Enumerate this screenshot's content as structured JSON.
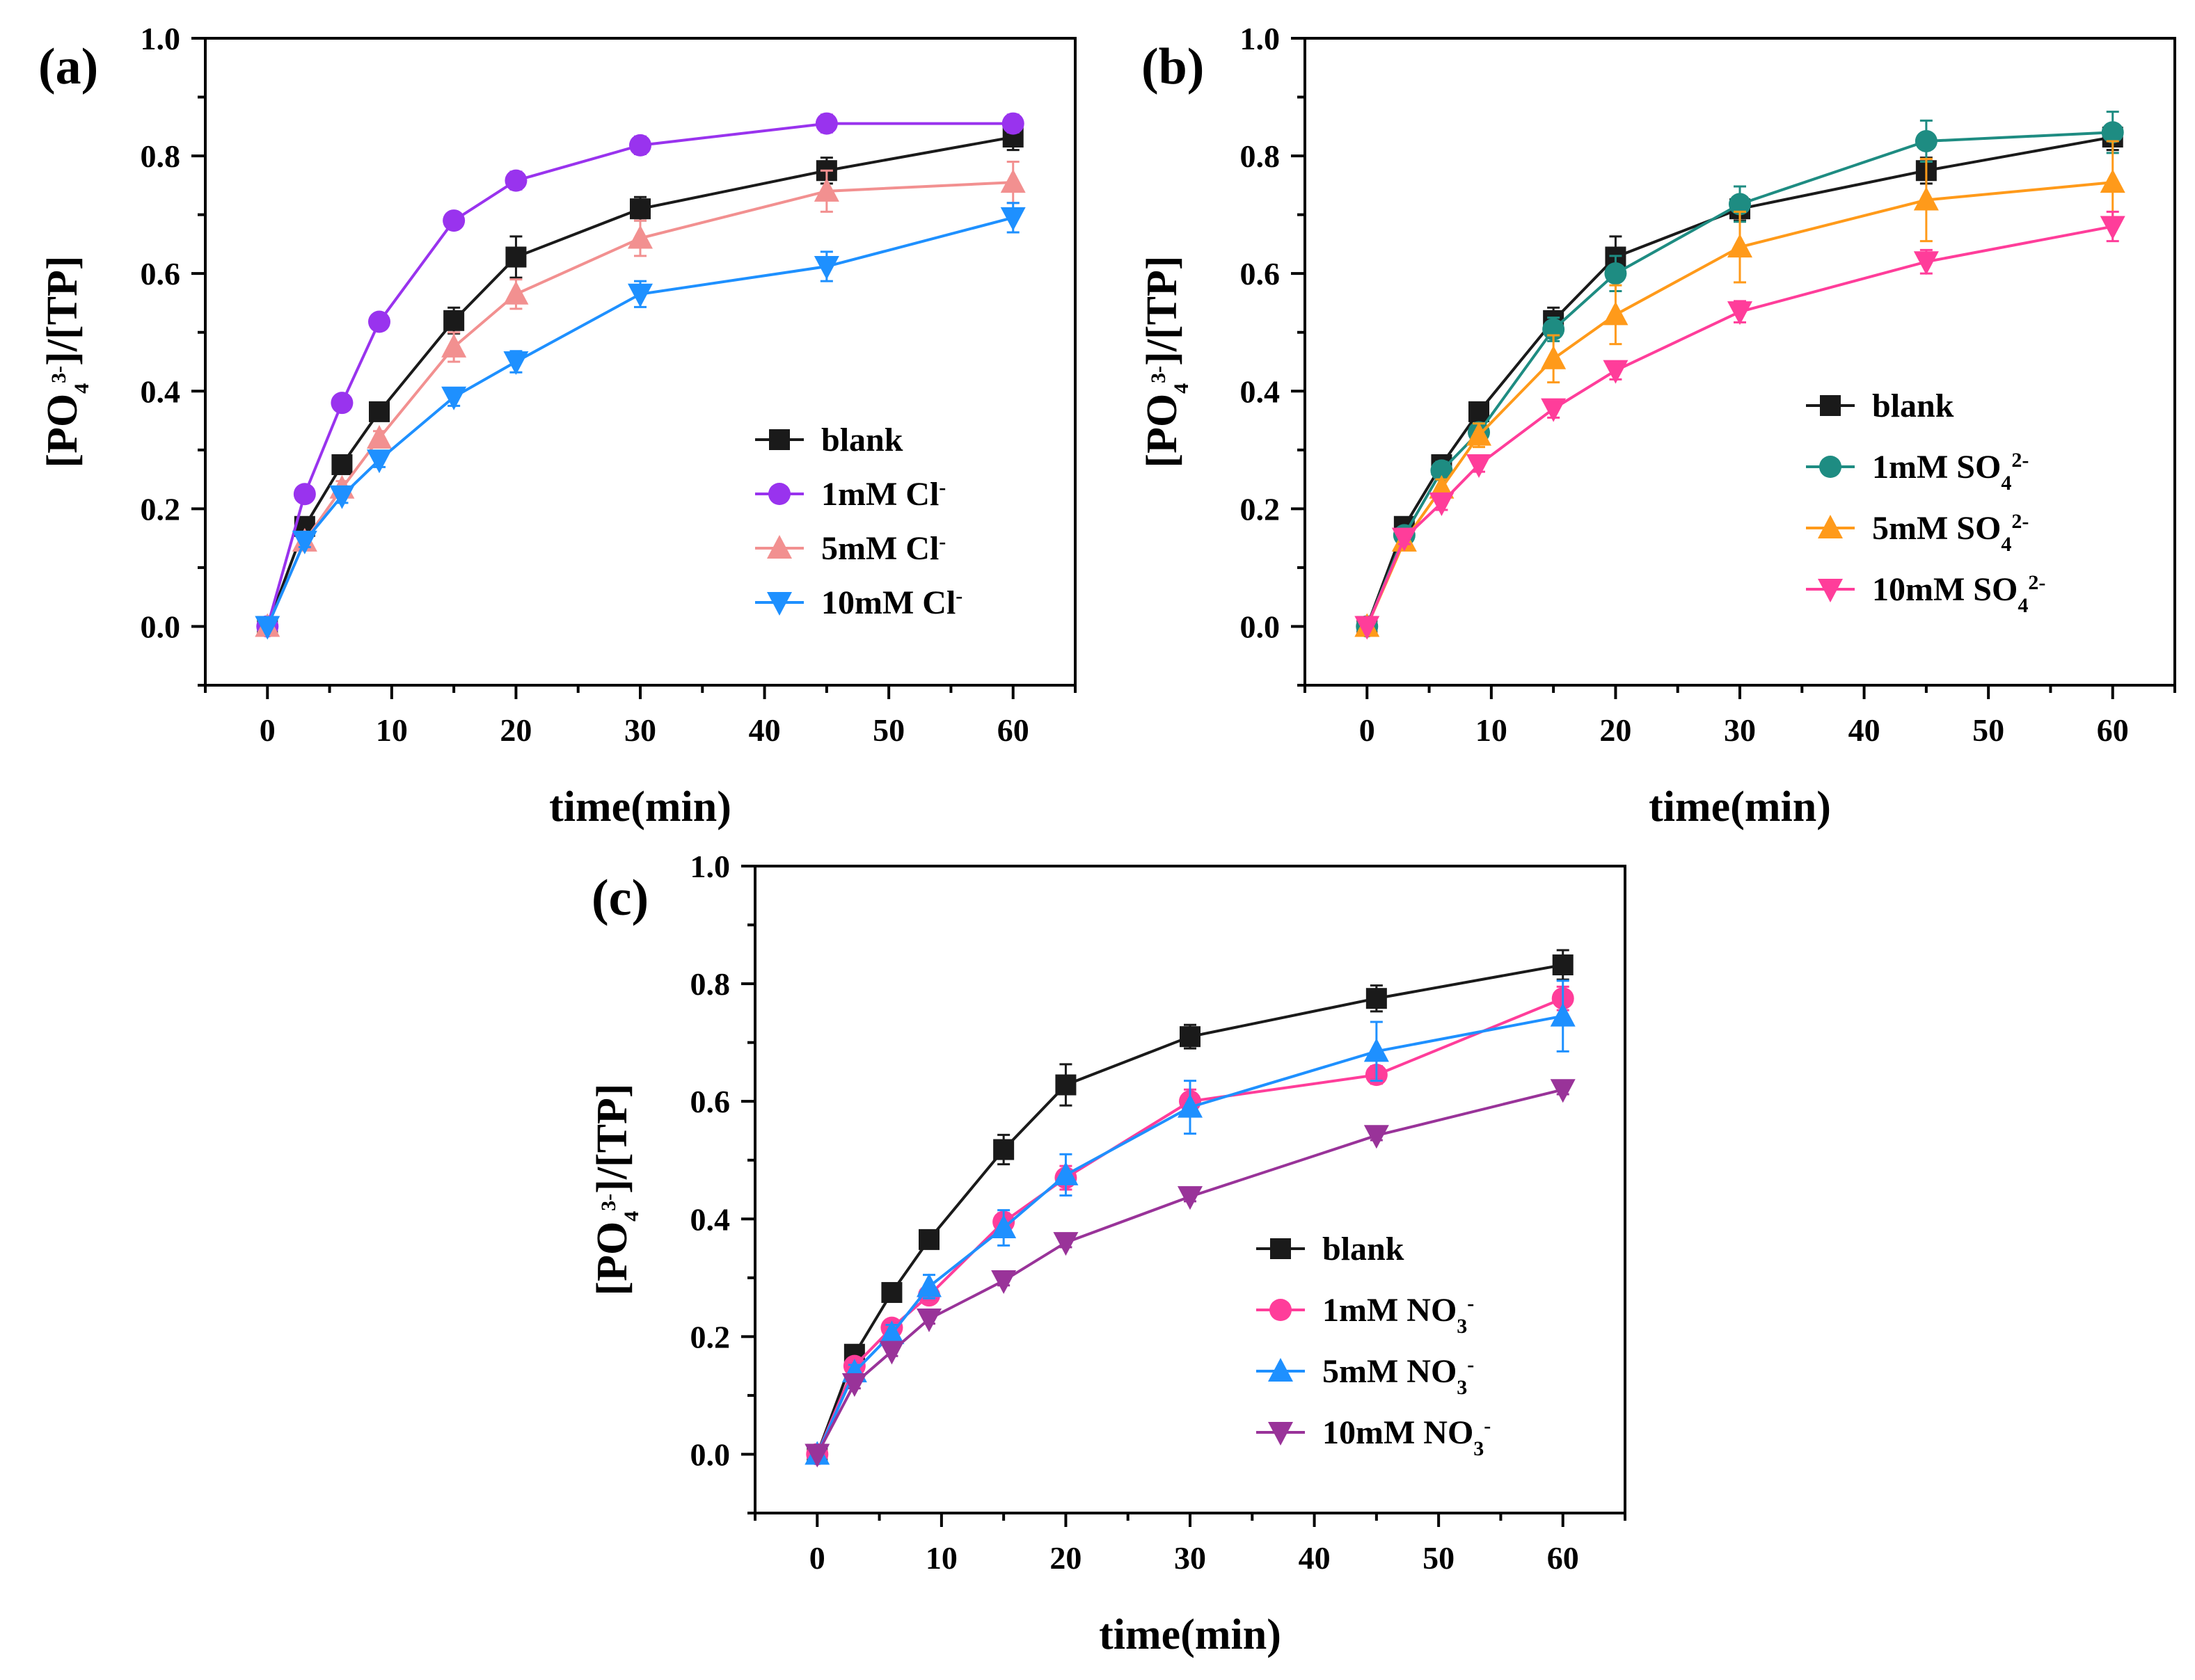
{
  "chart_data": [
    {
      "type": "line",
      "panel_tag": "(a)",
      "xlabel": "time(min)",
      "ylabel": {
        "main": "[PO",
        "sub": "4",
        "sup": "3-",
        "rest": "]/[TP]"
      },
      "xlim": [
        -5,
        65
      ],
      "ylim": [
        -0.1,
        1.0
      ],
      "xticks": [
        0,
        10,
        20,
        30,
        40,
        50,
        60
      ],
      "yticks": [
        0.0,
        0.2,
        0.4,
        0.6,
        0.8,
        1.0
      ],
      "ytick_labels": [
        "0.0",
        "0.2",
        "0.4",
        "0.6",
        "0.8",
        "1.0"
      ],
      "x": [
        0,
        3,
        6,
        9,
        15,
        20,
        30,
        45,
        60
      ],
      "legend_position": "bottom-right",
      "series": [
        {
          "name": "blank",
          "label": {
            "main": "blank",
            "sub": "",
            "sup": ""
          },
          "color": "#1a1a1a",
          "marker": "square",
          "values": [
            0.0,
            0.17,
            0.275,
            0.365,
            0.52,
            0.628,
            0.71,
            0.775,
            0.832
          ],
          "errors": [
            0.0,
            0.01,
            0.012,
            0.012,
            0.022,
            0.035,
            0.02,
            0.022,
            0.022
          ]
        },
        {
          "name": "1mM Cl-",
          "label": {
            "main": "1mM Cl",
            "sub": "",
            "sup": "-"
          },
          "color": "#9933ee",
          "marker": "circle",
          "values": [
            0.0,
            0.225,
            0.38,
            0.518,
            0.69,
            0.758,
            0.818,
            0.855,
            0.855
          ],
          "errors": [
            0.0,
            0.008,
            0.01,
            0.01,
            0.012,
            0.015,
            0.015,
            0.015,
            0.015
          ]
        },
        {
          "name": "5mM Cl-",
          "label": {
            "main": "5mM Cl",
            "sub": "",
            "sup": "-"
          },
          "color": "#f29090",
          "marker": "triangle-up",
          "values": [
            0.0,
            0.145,
            0.235,
            0.32,
            0.475,
            0.565,
            0.66,
            0.74,
            0.755
          ],
          "errors": [
            0.0,
            0.01,
            0.012,
            0.012,
            0.025,
            0.025,
            0.03,
            0.035,
            0.035
          ]
        },
        {
          "name": "10mM Cl-",
          "label": {
            "main": "10mM Cl",
            "sub": "",
            "sup": "-"
          },
          "color": "#1e90ff",
          "marker": "triangle-down",
          "values": [
            0.0,
            0.145,
            0.222,
            0.283,
            0.39,
            0.45,
            0.565,
            0.612,
            0.695
          ],
          "errors": [
            0.0,
            0.01,
            0.012,
            0.012,
            0.015,
            0.018,
            0.022,
            0.025,
            0.025
          ]
        }
      ]
    },
    {
      "type": "line",
      "panel_tag": "(b)",
      "xlabel": "time(min)",
      "ylabel": {
        "main": "[PO",
        "sub": "4",
        "sup": "3-",
        "rest": "]/[TP]"
      },
      "xlim": [
        -5,
        65
      ],
      "ylim": [
        -0.1,
        1.0
      ],
      "xticks": [
        0,
        10,
        20,
        30,
        40,
        50,
        60
      ],
      "yticks": [
        0.0,
        0.2,
        0.4,
        0.6,
        0.8,
        1.0
      ],
      "ytick_labels": [
        "0.0",
        "0.2",
        "0.4",
        "0.6",
        "0.8",
        "1.0"
      ],
      "x": [
        0,
        3,
        6,
        9,
        15,
        20,
        30,
        45,
        60
      ],
      "legend_position": "right",
      "series": [
        {
          "name": "blank",
          "label": {
            "main": "blank",
            "sub": "",
            "sup": ""
          },
          "color": "#1a1a1a",
          "marker": "square",
          "values": [
            0.0,
            0.17,
            0.275,
            0.365,
            0.52,
            0.628,
            0.71,
            0.775,
            0.832
          ],
          "errors": [
            0.0,
            0.01,
            0.012,
            0.012,
            0.022,
            0.035,
            0.02,
            0.022,
            0.022
          ]
        },
        {
          "name": "1mM SO4 2-",
          "label": {
            "main": "1mM SO",
            "sub": "4",
            "sup": "2-"
          },
          "color": "#1e8c82",
          "marker": "circle",
          "values": [
            0.0,
            0.155,
            0.265,
            0.33,
            0.505,
            0.6,
            0.718,
            0.825,
            0.84
          ],
          "errors": [
            0.0,
            0.01,
            0.015,
            0.015,
            0.02,
            0.03,
            0.03,
            0.035,
            0.035
          ]
        },
        {
          "name": "5mM SO4 2-",
          "label": {
            "main": "5mM SO",
            "sub": "4",
            "sup": "2-"
          },
          "color": "#ff9a1a",
          "marker": "triangle-up",
          "values": [
            0.0,
            0.145,
            0.235,
            0.325,
            0.455,
            0.53,
            0.645,
            0.725,
            0.755
          ],
          "errors": [
            0.0,
            0.01,
            0.015,
            0.02,
            0.04,
            0.05,
            0.06,
            0.07,
            0.07
          ]
        },
        {
          "name": "10mM SO4 2-",
          "label": {
            "main": "10mM SO",
            "sub": "4",
            "sup": "2-"
          },
          "color": "#ff3d9a",
          "marker": "triangle-down",
          "values": [
            0.0,
            0.15,
            0.21,
            0.275,
            0.37,
            0.435,
            0.535,
            0.62,
            0.68
          ],
          "errors": [
            0.0,
            0.01,
            0.012,
            0.012,
            0.015,
            0.015,
            0.018,
            0.02,
            0.025
          ]
        }
      ]
    },
    {
      "type": "line",
      "panel_tag": "(c)",
      "xlabel": "time(min)",
      "ylabel": {
        "main": "[PO",
        "sub": "4",
        "sup": "3-",
        "rest": "]/[TP]"
      },
      "xlim": [
        -5,
        65
      ],
      "ylim": [
        -0.1,
        1.0
      ],
      "xticks": [
        0,
        10,
        20,
        30,
        40,
        50,
        60
      ],
      "yticks": [
        0.0,
        0.2,
        0.4,
        0.6,
        0.8,
        1.0
      ],
      "ytick_labels": [
        "0.0",
        "0.2",
        "0.4",
        "0.6",
        "0.8",
        "1.0"
      ],
      "x": [
        0,
        3,
        6,
        9,
        15,
        20,
        30,
        45,
        60
      ],
      "legend_position": "bottom-right",
      "series": [
        {
          "name": "blank",
          "label": {
            "main": "blank",
            "sub": "",
            "sup": ""
          },
          "color": "#1a1a1a",
          "marker": "square",
          "values": [
            0.0,
            0.17,
            0.275,
            0.365,
            0.518,
            0.628,
            0.71,
            0.775,
            0.832
          ],
          "errors": [
            0.0,
            0.01,
            0.012,
            0.012,
            0.025,
            0.035,
            0.02,
            0.022,
            0.025
          ]
        },
        {
          "name": "1mM NO3-",
          "label": {
            "main": "1mM NO",
            "sub": "3",
            "sup": "-"
          },
          "color": "#ff3d9a",
          "marker": "circle",
          "values": [
            0.0,
            0.15,
            0.215,
            0.27,
            0.395,
            0.47,
            0.6,
            0.645,
            0.775
          ],
          "errors": [
            0.0,
            0.01,
            0.012,
            0.012,
            0.015,
            0.02,
            0.02,
            0.015,
            0.02
          ]
        },
        {
          "name": "5mM NO3-",
          "label": {
            "main": "5mM NO",
            "sub": "3",
            "sup": "-"
          },
          "color": "#1e90ff",
          "marker": "triangle-up",
          "values": [
            0.0,
            0.14,
            0.205,
            0.285,
            0.385,
            0.475,
            0.59,
            0.685,
            0.745
          ],
          "errors": [
            0.0,
            0.012,
            0.015,
            0.02,
            0.03,
            0.035,
            0.045,
            0.05,
            0.06
          ]
        },
        {
          "name": "10mM NO3-",
          "label": {
            "main": "10mM NO",
            "sub": "3",
            "sup": "-"
          },
          "color": "#993399",
          "marker": "triangle-down",
          "values": [
            0.0,
            0.12,
            0.175,
            0.23,
            0.295,
            0.36,
            0.438,
            0.542,
            0.62
          ],
          "errors": [
            0.0,
            0.008,
            0.008,
            0.008,
            0.008,
            0.008,
            0.008,
            0.008,
            0.008
          ]
        }
      ]
    }
  ]
}
